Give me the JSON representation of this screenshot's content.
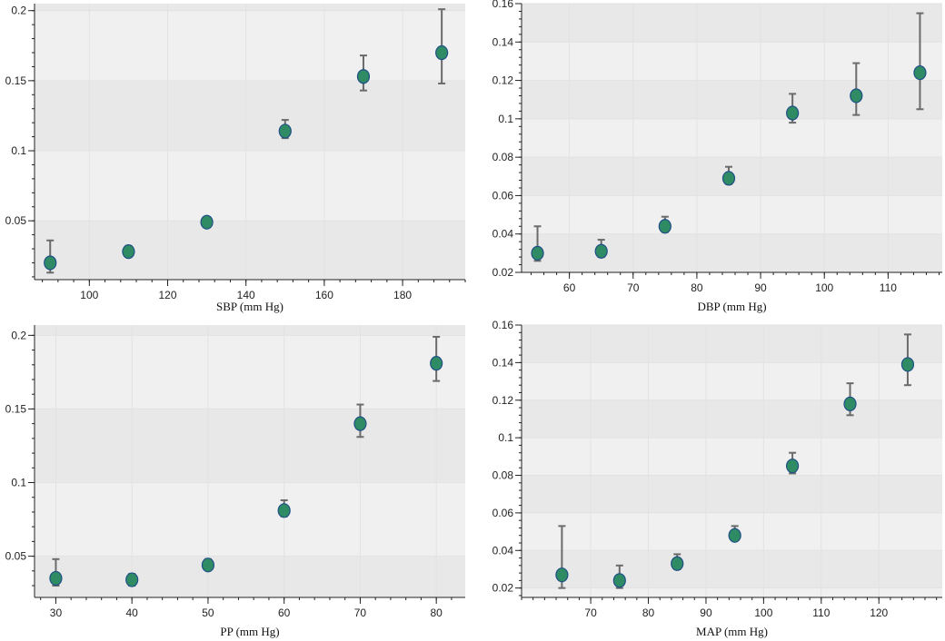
{
  "colors": {
    "point_fill": "#2e8b64",
    "point_stroke": "#1f4f86",
    "errorbar": "#6b6b6b",
    "plot_bg": "#f0f0f0",
    "band_bg": "#e8e8e8",
    "axis": "#222222"
  },
  "chart_data": [
    {
      "id": "sbp",
      "type": "scatter",
      "title": "",
      "xlabel": "SBP (mm Hg)",
      "ylabel": "",
      "xlim": [
        86,
        196
      ],
      "ylim": [
        0.008,
        0.205
      ],
      "x_ticks": [
        100,
        120,
        140,
        160,
        180
      ],
      "x_tick_labels": [
        "100",
        "120",
        "140",
        "160",
        "180"
      ],
      "y_ticks": [
        0.05,
        0.1,
        0.15,
        0.2
      ],
      "y_tick_labels": [
        "0.05",
        "0.1",
        "0.15",
        "0.2"
      ],
      "points": [
        {
          "x": 90,
          "y": 0.02,
          "lo": 0.013,
          "hi": 0.036
        },
        {
          "x": 110,
          "y": 0.028,
          "lo": 0.025,
          "hi": 0.032
        },
        {
          "x": 130,
          "y": 0.049,
          "lo": 0.047,
          "hi": 0.052
        },
        {
          "x": 150,
          "y": 0.114,
          "lo": 0.109,
          "hi": 0.122
        },
        {
          "x": 170,
          "y": 0.153,
          "lo": 0.143,
          "hi": 0.168
        },
        {
          "x": 190,
          "y": 0.17,
          "lo": 0.148,
          "hi": 0.201
        }
      ]
    },
    {
      "id": "dbp",
      "type": "scatter",
      "title": "",
      "xlabel": "DBP (mm Hg)",
      "ylabel": "",
      "xlim": [
        52.5,
        118.5
      ],
      "ylim": [
        0.02,
        0.16
      ],
      "x_ticks": [
        60,
        70,
        80,
        90,
        100,
        110
      ],
      "x_tick_labels": [
        "60",
        "70",
        "80",
        "90",
        "100",
        "110"
      ],
      "y_ticks": [
        0.02,
        0.04,
        0.06,
        0.08,
        0.1,
        0.12,
        0.14,
        0.16
      ],
      "y_tick_labels": [
        "0.02",
        "0.04",
        "0.06",
        "0.08",
        "0.1",
        "0.12",
        "0.14",
        "0.16"
      ],
      "points": [
        {
          "x": 55,
          "y": 0.03,
          "lo": 0.026,
          "hi": 0.044
        },
        {
          "x": 65,
          "y": 0.031,
          "lo": 0.028,
          "hi": 0.037
        },
        {
          "x": 75,
          "y": 0.044,
          "lo": 0.041,
          "hi": 0.049
        },
        {
          "x": 85,
          "y": 0.069,
          "lo": 0.066,
          "hi": 0.075
        },
        {
          "x": 95,
          "y": 0.103,
          "lo": 0.098,
          "hi": 0.113
        },
        {
          "x": 105,
          "y": 0.112,
          "lo": 0.102,
          "hi": 0.129
        },
        {
          "x": 115,
          "y": 0.124,
          "lo": 0.105,
          "hi": 0.155
        }
      ]
    },
    {
      "id": "pp",
      "type": "scatter",
      "title": "",
      "xlabel": "PP (mm Hg)",
      "ylabel": "",
      "xlim": [
        27.2,
        83.8
      ],
      "ylim": [
        0.022,
        0.207
      ],
      "x_ticks": [
        30,
        40,
        50,
        60,
        70,
        80
      ],
      "x_tick_labels": [
        "30",
        "40",
        "50",
        "60",
        "70",
        "80"
      ],
      "y_ticks": [
        0.05,
        0.1,
        0.15,
        0.2
      ],
      "y_tick_labels": [
        "0.05",
        "0.1",
        "0.15",
        "0.2"
      ],
      "points": [
        {
          "x": 30,
          "y": 0.035,
          "lo": 0.03,
          "hi": 0.048
        },
        {
          "x": 40,
          "y": 0.034,
          "lo": 0.03,
          "hi": 0.038
        },
        {
          "x": 50,
          "y": 0.044,
          "lo": 0.041,
          "hi": 0.048
        },
        {
          "x": 60,
          "y": 0.081,
          "lo": 0.077,
          "hi": 0.088
        },
        {
          "x": 70,
          "y": 0.14,
          "lo": 0.131,
          "hi": 0.153
        },
        {
          "x": 80,
          "y": 0.181,
          "lo": 0.169,
          "hi": 0.199
        }
      ]
    },
    {
      "id": "map",
      "type": "scatter",
      "title": "",
      "xlabel": "MAP (mm Hg)",
      "ylabel": "",
      "xlim": [
        58,
        131
      ],
      "ylim": [
        0.015,
        0.16
      ],
      "x_ticks": [
        70,
        80,
        90,
        100,
        110,
        120
      ],
      "x_tick_labels": [
        "70",
        "80",
        "90",
        "100",
        "110",
        "120"
      ],
      "y_ticks": [
        0.02,
        0.04,
        0.06,
        0.08,
        0.1,
        0.12,
        0.14,
        0.16
      ],
      "y_tick_labels": [
        "0.02",
        "0.04",
        "0.06",
        "0.08",
        "0.1",
        "0.12",
        "0.14",
        "0.16"
      ],
      "points": [
        {
          "x": 65,
          "y": 0.027,
          "lo": 0.02,
          "hi": 0.053
        },
        {
          "x": 75,
          "y": 0.024,
          "lo": 0.02,
          "hi": 0.032
        },
        {
          "x": 85,
          "y": 0.033,
          "lo": 0.03,
          "hi": 0.038
        },
        {
          "x": 95,
          "y": 0.048,
          "lo": 0.046,
          "hi": 0.053
        },
        {
          "x": 105,
          "y": 0.085,
          "lo": 0.081,
          "hi": 0.092
        },
        {
          "x": 115,
          "y": 0.118,
          "lo": 0.112,
          "hi": 0.129
        },
        {
          "x": 125,
          "y": 0.139,
          "lo": 0.128,
          "hi": 0.155
        }
      ]
    }
  ]
}
